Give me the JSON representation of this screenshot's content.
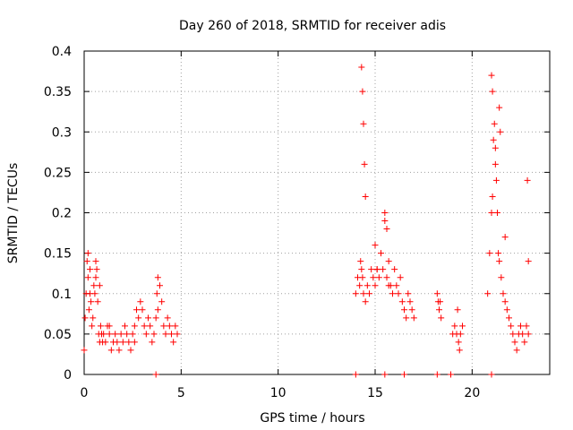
{
  "chart_data": {
    "type": "scatter",
    "title": "Day 260 of 2018, SRMTID for receiver adis",
    "xlabel": "GPS time / hours",
    "ylabel": "SRMTID / TECUs",
    "xlim": [
      0,
      24
    ],
    "ylim": [
      0,
      0.4
    ],
    "xticks": [
      0,
      5,
      10,
      15,
      20
    ],
    "xtick_labels": [
      "0",
      "5",
      "10",
      "15",
      "20"
    ],
    "yticks": [
      0,
      0.05,
      0.1,
      0.15,
      0.2,
      0.25,
      0.3,
      0.35,
      0.4
    ],
    "ytick_labels": [
      "0",
      "0.05",
      "0.1",
      "0.15",
      "0.2",
      "0.25",
      "0.3",
      "0.35",
      "0.4"
    ],
    "grid": true,
    "marker": "plus",
    "color": "#ff0000",
    "series": [
      {
        "x": [
          0.0,
          0.05,
          0.1,
          0.15,
          0.2,
          0.25,
          0.3,
          0.35,
          0.4,
          0.45,
          0.5,
          0.55,
          0.6,
          0.65,
          0.7,
          0.75,
          0.8,
          0.85,
          0.9,
          0.95,
          1.0,
          1.1,
          1.2,
          1.3,
          1.4,
          1.5,
          1.6,
          1.7,
          1.8,
          1.9,
          2.0,
          2.1,
          2.2,
          2.3,
          2.4,
          2.5,
          2.6,
          2.7,
          2.8,
          2.9,
          3.0,
          3.1,
          3.2,
          3.3,
          3.4,
          3.5,
          3.6,
          3.7,
          3.8,
          3.9,
          4.0,
          4.1,
          4.2,
          4.3,
          4.4,
          4.5,
          4.6,
          4.7,
          4.8,
          0.2,
          0.3,
          0.6,
          0.8,
          3.8,
          3.75,
          1.3,
          2.6,
          14.0,
          14.1,
          14.2,
          14.25,
          14.3,
          14.35,
          14.4,
          14.5,
          14.6,
          14.7,
          14.8,
          14.9,
          15.0,
          15.1,
          15.2,
          15.3,
          15.4,
          15.5,
          15.6,
          15.7,
          15.8,
          15.9,
          16.0,
          16.1,
          16.2,
          16.3,
          16.4,
          16.5,
          16.6,
          16.7,
          16.8,
          16.9,
          17.0,
          14.3,
          14.35,
          14.4,
          14.45,
          14.5,
          15.0,
          15.1,
          15.5,
          15.6,
          15.7,
          18.2,
          18.25,
          18.3,
          18.35,
          18.4,
          19.0,
          19.1,
          19.2,
          19.3,
          19.4,
          19.5,
          19.25,
          19.35,
          20.8,
          20.9,
          21.0,
          21.05,
          21.1,
          21.15,
          21.2,
          21.25,
          21.3,
          21.35,
          21.4,
          21.5,
          21.6,
          21.7,
          21.8,
          21.9,
          22.0,
          22.1,
          22.2,
          22.3,
          22.4,
          22.5,
          22.6,
          22.7,
          22.8,
          22.9,
          21.0,
          21.05,
          21.2,
          21.4,
          21.45,
          21.7,
          22.85,
          22.9,
          14.0,
          15.5,
          16.5,
          18.2,
          18.9,
          21.0,
          3.7
        ],
        "y": [
          0.03,
          0.07,
          0.1,
          0.14,
          0.12,
          0.08,
          0.1,
          0.09,
          0.06,
          0.07,
          0.11,
          0.1,
          0.12,
          0.13,
          0.09,
          0.05,
          0.04,
          0.06,
          0.05,
          0.04,
          0.05,
          0.04,
          0.06,
          0.05,
          0.03,
          0.04,
          0.05,
          0.04,
          0.03,
          0.05,
          0.04,
          0.06,
          0.05,
          0.04,
          0.03,
          0.05,
          0.06,
          0.08,
          0.07,
          0.09,
          0.08,
          0.06,
          0.05,
          0.07,
          0.06,
          0.04,
          0.05,
          0.07,
          0.08,
          0.11,
          0.09,
          0.06,
          0.05,
          0.07,
          0.06,
          0.05,
          0.04,
          0.06,
          0.05,
          0.15,
          0.13,
          0.14,
          0.11,
          0.12,
          0.1,
          0.06,
          0.04,
          0.1,
          0.12,
          0.11,
          0.14,
          0.13,
          0.12,
          0.1,
          0.09,
          0.11,
          0.1,
          0.13,
          0.12,
          0.11,
          0.13,
          0.12,
          0.15,
          0.13,
          0.2,
          0.18,
          0.14,
          0.11,
          0.1,
          0.13,
          0.11,
          0.1,
          0.12,
          0.09,
          0.08,
          0.07,
          0.1,
          0.09,
          0.08,
          0.07,
          0.38,
          0.35,
          0.31,
          0.26,
          0.22,
          0.16,
          0.13,
          0.19,
          0.12,
          0.11,
          0.1,
          0.09,
          0.08,
          0.09,
          0.07,
          0.05,
          0.06,
          0.05,
          0.04,
          0.05,
          0.06,
          0.08,
          0.03,
          0.1,
          0.15,
          0.2,
          0.22,
          0.29,
          0.31,
          0.26,
          0.24,
          0.2,
          0.15,
          0.14,
          0.12,
          0.1,
          0.09,
          0.08,
          0.07,
          0.06,
          0.05,
          0.04,
          0.03,
          0.05,
          0.06,
          0.05,
          0.04,
          0.06,
          0.05,
          0.37,
          0.35,
          0.28,
          0.33,
          0.3,
          0.17,
          0.24,
          0.14,
          0.0,
          0.0,
          0.0,
          0.0,
          0.0,
          0.0,
          0.0
        ]
      }
    ]
  }
}
